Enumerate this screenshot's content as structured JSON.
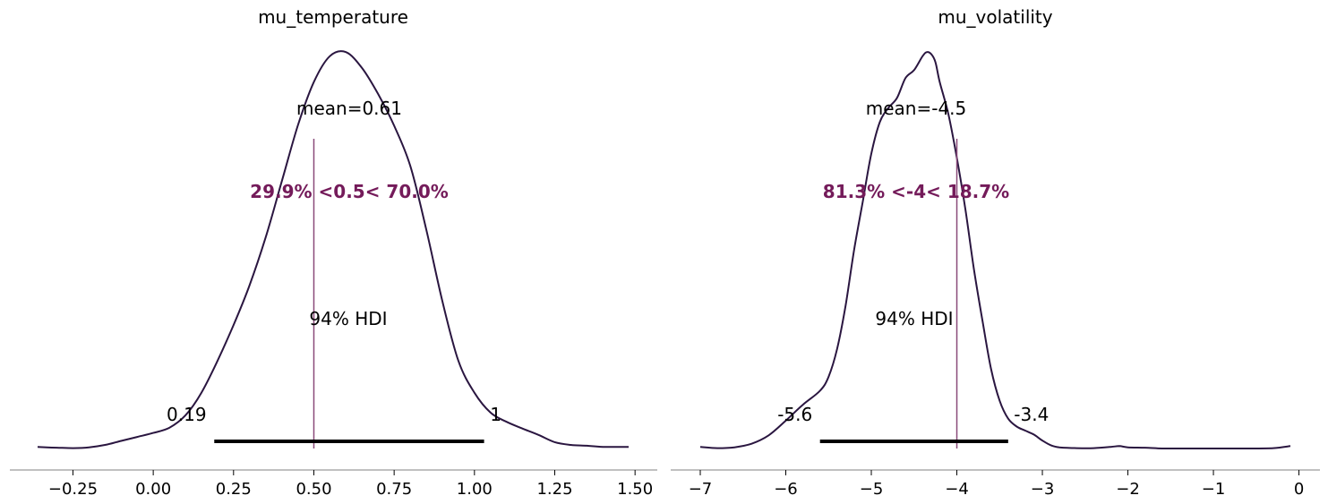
{
  "chart_data": [
    {
      "type": "line",
      "title": "mu_temperature",
      "xlabel": "",
      "ylabel": "",
      "xlim": [
        -0.36,
        1.48
      ],
      "x_ticks": [
        -0.25,
        0.0,
        0.25,
        0.5,
        0.75,
        1.0,
        1.25,
        1.5
      ],
      "x_tick_labels": [
        "−0.25",
        "0.00",
        "0.25",
        "0.50",
        "0.75",
        "1.00",
        "1.25",
        "1.50"
      ],
      "grid": false,
      "series": [
        {
          "x": [
            -0.36,
            -0.3,
            -0.25,
            -0.2,
            -0.15,
            -0.1,
            -0.05,
            0.0,
            0.05,
            0.1,
            0.15,
            0.2,
            0.25,
            0.3,
            0.35,
            0.4,
            0.45,
            0.5,
            0.55,
            0.6,
            0.65,
            0.7,
            0.75,
            0.8,
            0.85,
            0.9,
            0.95,
            1.0,
            1.05,
            1.1,
            1.15,
            1.2,
            1.25,
            1.3,
            1.35,
            1.4,
            1.48
          ],
          "y": [
            0.004,
            0.002,
            0.001,
            0.003,
            0.009,
            0.019,
            0.029,
            0.039,
            0.052,
            0.083,
            0.14,
            0.22,
            0.31,
            0.41,
            0.53,
            0.67,
            0.81,
            0.92,
            0.985,
            0.995,
            0.955,
            0.89,
            0.81,
            0.71,
            0.55,
            0.37,
            0.22,
            0.14,
            0.09,
            0.067,
            0.05,
            0.034,
            0.016,
            0.009,
            0.007,
            0.004,
            0.004
          ]
        }
      ],
      "mean_label": "mean=0.61",
      "reference": {
        "value": 0.5,
        "label": "29.9% <0.5< 70.0%",
        "color": "#741b5a"
      },
      "hdi": {
        "low": 0.19,
        "high": 1.03,
        "label": "94% HDI",
        "low_label": "0.19",
        "high_label": "1"
      }
    },
    {
      "type": "line",
      "title": "mu_volatility",
      "xlabel": "",
      "ylabel": "",
      "xlim": [
        -7.0,
        -0.1
      ],
      "x_ticks": [
        -7,
        -6,
        -5,
        -4,
        -3,
        -2,
        -1,
        0
      ],
      "x_tick_labels": [
        "−7",
        "−6",
        "−5",
        "−4",
        "−3",
        "−2",
        "−1",
        "0"
      ],
      "grid": false,
      "series": [
        {
          "x": [
            -7.0,
            -6.8,
            -6.6,
            -6.4,
            -6.2,
            -6.0,
            -5.8,
            -5.6,
            -5.5,
            -5.4,
            -5.3,
            -5.2,
            -5.1,
            -5.0,
            -4.9,
            -4.8,
            -4.7,
            -4.6,
            -4.5,
            -4.4,
            -4.35,
            -4.3,
            -4.25,
            -4.2,
            -4.1,
            -4.0,
            -3.9,
            -3.8,
            -3.7,
            -3.6,
            -3.5,
            -3.4,
            -3.3,
            -3.2,
            -3.1,
            -3.0,
            -2.9,
            -2.8,
            -2.6,
            -2.4,
            -2.2,
            -2.1,
            -2.0,
            -1.8,
            -1.6,
            -1.4,
            -1.0,
            -0.6,
            -0.3,
            -0.1
          ],
          "y": [
            0.004,
            0.001,
            0.003,
            0.012,
            0.033,
            0.07,
            0.11,
            0.145,
            0.18,
            0.25,
            0.36,
            0.5,
            0.62,
            0.74,
            0.82,
            0.855,
            0.88,
            0.93,
            0.95,
            0.985,
            0.995,
            0.99,
            0.97,
            0.92,
            0.84,
            0.73,
            0.6,
            0.45,
            0.32,
            0.2,
            0.12,
            0.075,
            0.055,
            0.045,
            0.035,
            0.02,
            0.008,
            0.003,
            0.001,
            0.001,
            0.004,
            0.006,
            0.003,
            0.002,
            0.0,
            0.0,
            0.0,
            0.0,
            0.001,
            0.006
          ]
        }
      ],
      "mean_label": "mean=-4.5",
      "reference": {
        "value": -4.0,
        "label": "81.3% <-4< 18.7%",
        "color": "#741b5a"
      },
      "hdi": {
        "low": -5.6,
        "high": -3.4,
        "label": "94% HDI",
        "low_label": "-5.6",
        "high_label": "-3.4"
      }
    }
  ],
  "colors": {
    "kde_line": "#2a1640",
    "reference_line": "#8a4a7a",
    "reference_text": "#741b5a",
    "hdi_bar": "#000000",
    "axis": "#808080"
  }
}
